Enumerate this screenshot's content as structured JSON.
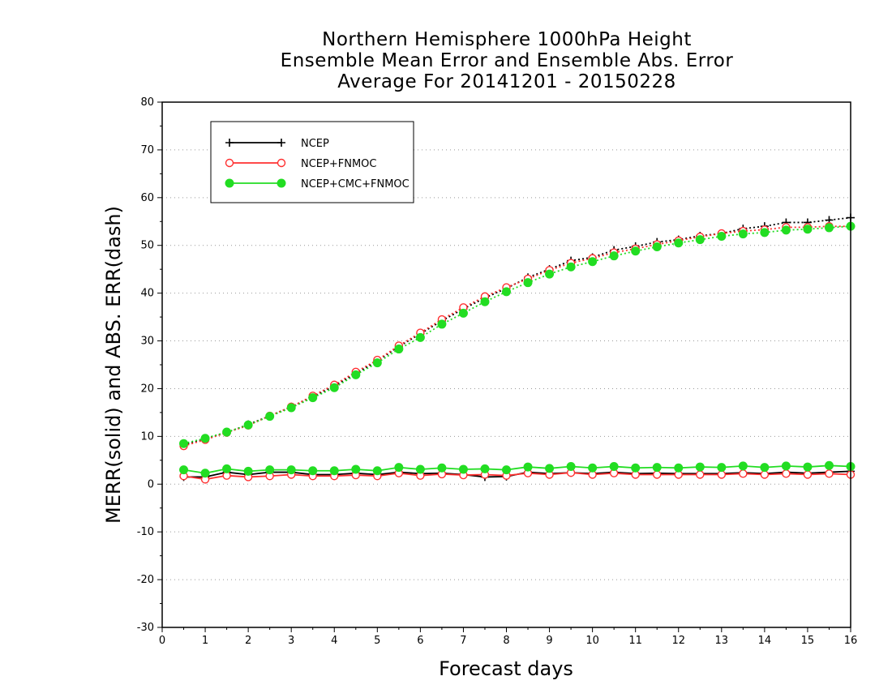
{
  "chart_data": {
    "type": "line",
    "title": [
      "Northern Hemisphere 1000hPa Height",
      "Ensemble Mean Error and Ensemble Abs. Error",
      "Average For 20141201 - 20150228"
    ],
    "xlabel": "Forecast days",
    "ylabel": "MERR(solid) and ABS. ERR(dash)",
    "xlim": [
      0,
      16
    ],
    "ylim": [
      -30,
      80
    ],
    "xticks": [
      0,
      1,
      2,
      3,
      4,
      5,
      6,
      7,
      8,
      9,
      10,
      11,
      12,
      13,
      14,
      15,
      16
    ],
    "yticks": [
      -30,
      -20,
      -10,
      0,
      10,
      20,
      30,
      40,
      50,
      60,
      70,
      80
    ],
    "grid": "horizontal dotted",
    "legend_position": "top-left",
    "x": [
      0.5,
      1,
      1.5,
      2,
      2.5,
      3,
      3.5,
      4,
      4.5,
      5,
      5.5,
      6,
      6.5,
      7,
      7.5,
      8,
      8.5,
      9,
      9.5,
      10,
      10.5,
      11,
      11.5,
      12,
      12.5,
      13,
      13.5,
      14,
      14.5,
      15,
      15.5,
      16
    ],
    "series": [
      {
        "name": "NCEP",
        "color": "#000000",
        "marker": "plus",
        "merr": [
          1.5,
          1.5,
          2.5,
          2.0,
          2.5,
          2.5,
          2.0,
          2.0,
          2.3,
          2.0,
          2.5,
          2.2,
          2.3,
          2.0,
          1.5,
          1.6,
          2.5,
          2.2,
          2.4,
          2.2,
          2.5,
          2.2,
          2.3,
          2.2,
          2.2,
          2.2,
          2.4,
          2.2,
          2.5,
          2.3,
          2.5,
          2.7
        ],
        "abs": [
          8.2,
          9.5,
          10.8,
          12.5,
          14.3,
          16.2,
          18.3,
          20.6,
          23.2,
          25.8,
          28.8,
          31.5,
          34.2,
          36.7,
          39.0,
          41.0,
          43.3,
          45.0,
          46.8,
          47.5,
          49.0,
          49.8,
          50.7,
          51.2,
          52.0,
          52.5,
          53.5,
          54.0,
          54.8,
          54.8,
          55.3,
          55.8
        ]
      },
      {
        "name": "NCEP+FNMOC",
        "color": "#ff3030",
        "marker": "open-circle",
        "merr": [
          1.7,
          1.0,
          1.8,
          1.5,
          1.7,
          2.0,
          1.7,
          1.7,
          1.9,
          1.7,
          2.3,
          1.8,
          2.1,
          1.9,
          2.0,
          1.8,
          2.3,
          2.0,
          2.4,
          2.0,
          2.3,
          2.0,
          2.0,
          2.0,
          2.0,
          2.0,
          2.2,
          2.0,
          2.2,
          2.0,
          2.2,
          2.0
        ],
        "abs": [
          8.0,
          9.3,
          10.8,
          12.3,
          14.3,
          16.2,
          18.5,
          20.8,
          23.5,
          26.0,
          29.0,
          31.7,
          34.5,
          37.0,
          39.3,
          41.2,
          43.0,
          44.8,
          46.3,
          47.3,
          48.5,
          49.3,
          50.2,
          51.0,
          51.8,
          52.5,
          53.0,
          53.3,
          53.8,
          53.8,
          54.0,
          54.0
        ]
      },
      {
        "name": "NCEP+CMC+FNMOC",
        "color": "#22dd22",
        "marker": "filled-circle",
        "merr": [
          3.0,
          2.3,
          3.2,
          2.7,
          3.0,
          3.0,
          2.8,
          2.8,
          3.1,
          2.8,
          3.5,
          3.1,
          3.4,
          3.1,
          3.2,
          3.0,
          3.6,
          3.3,
          3.7,
          3.4,
          3.7,
          3.4,
          3.5,
          3.4,
          3.6,
          3.5,
          3.8,
          3.5,
          3.8,
          3.6,
          3.9,
          3.7
        ],
        "abs": [
          8.5,
          9.6,
          10.9,
          12.4,
          14.2,
          16.0,
          18.1,
          20.2,
          22.9,
          25.4,
          28.3,
          30.7,
          33.5,
          35.8,
          38.2,
          40.3,
          42.2,
          44.0,
          45.5,
          46.6,
          47.8,
          48.8,
          49.7,
          50.5,
          51.2,
          51.9,
          52.4,
          52.7,
          53.2,
          53.4,
          53.7,
          54.0
        ]
      }
    ]
  }
}
